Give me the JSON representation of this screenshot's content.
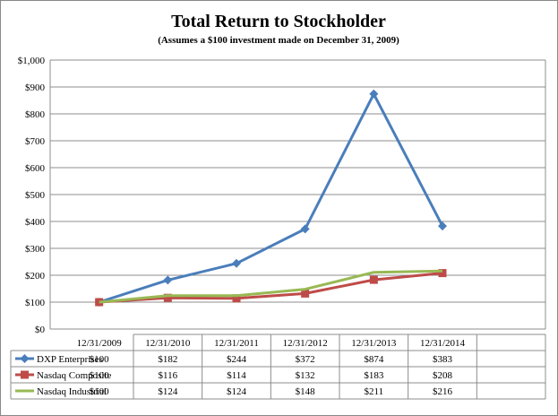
{
  "chart_data": {
    "type": "line",
    "title": "Total Return to Stockholder",
    "subtitle": "(Assumes a $100 investment made on December 31, 2009)",
    "categories": [
      "12/31/2009",
      "12/31/2010",
      "12/31/2011",
      "12/31/2012",
      "12/31/2013",
      "12/31/2014"
    ],
    "ylim": [
      0,
      1000
    ],
    "yticks": [
      "$0",
      "$100",
      "$200",
      "$300",
      "$400",
      "$500",
      "$600",
      "$700",
      "$800",
      "$900",
      "$1,000"
    ],
    "grid": true,
    "legend": "data-table",
    "series": [
      {
        "name": "DXP Enterprises",
        "color": "#4a7ebb",
        "marker": "diamond",
        "values": [
          100,
          182,
          244,
          372,
          874,
          383
        ],
        "labels": [
          "$100",
          "$182",
          "$244",
          "$372",
          "$874",
          "$383"
        ]
      },
      {
        "name": "Nasdaq Composite",
        "color": "#be4b48",
        "marker": "square",
        "values": [
          100,
          116,
          114,
          132,
          183,
          208
        ],
        "labels": [
          "$100",
          "$116",
          "$114",
          "$132",
          "$183",
          "$208"
        ]
      },
      {
        "name": "Nasdaq Industrial",
        "color": "#98b954",
        "marker": "none",
        "values": [
          100,
          124,
          124,
          148,
          211,
          216
        ],
        "labels": [
          "$100",
          "$124",
          "$124",
          "$148",
          "$211",
          "$216"
        ]
      }
    ]
  }
}
